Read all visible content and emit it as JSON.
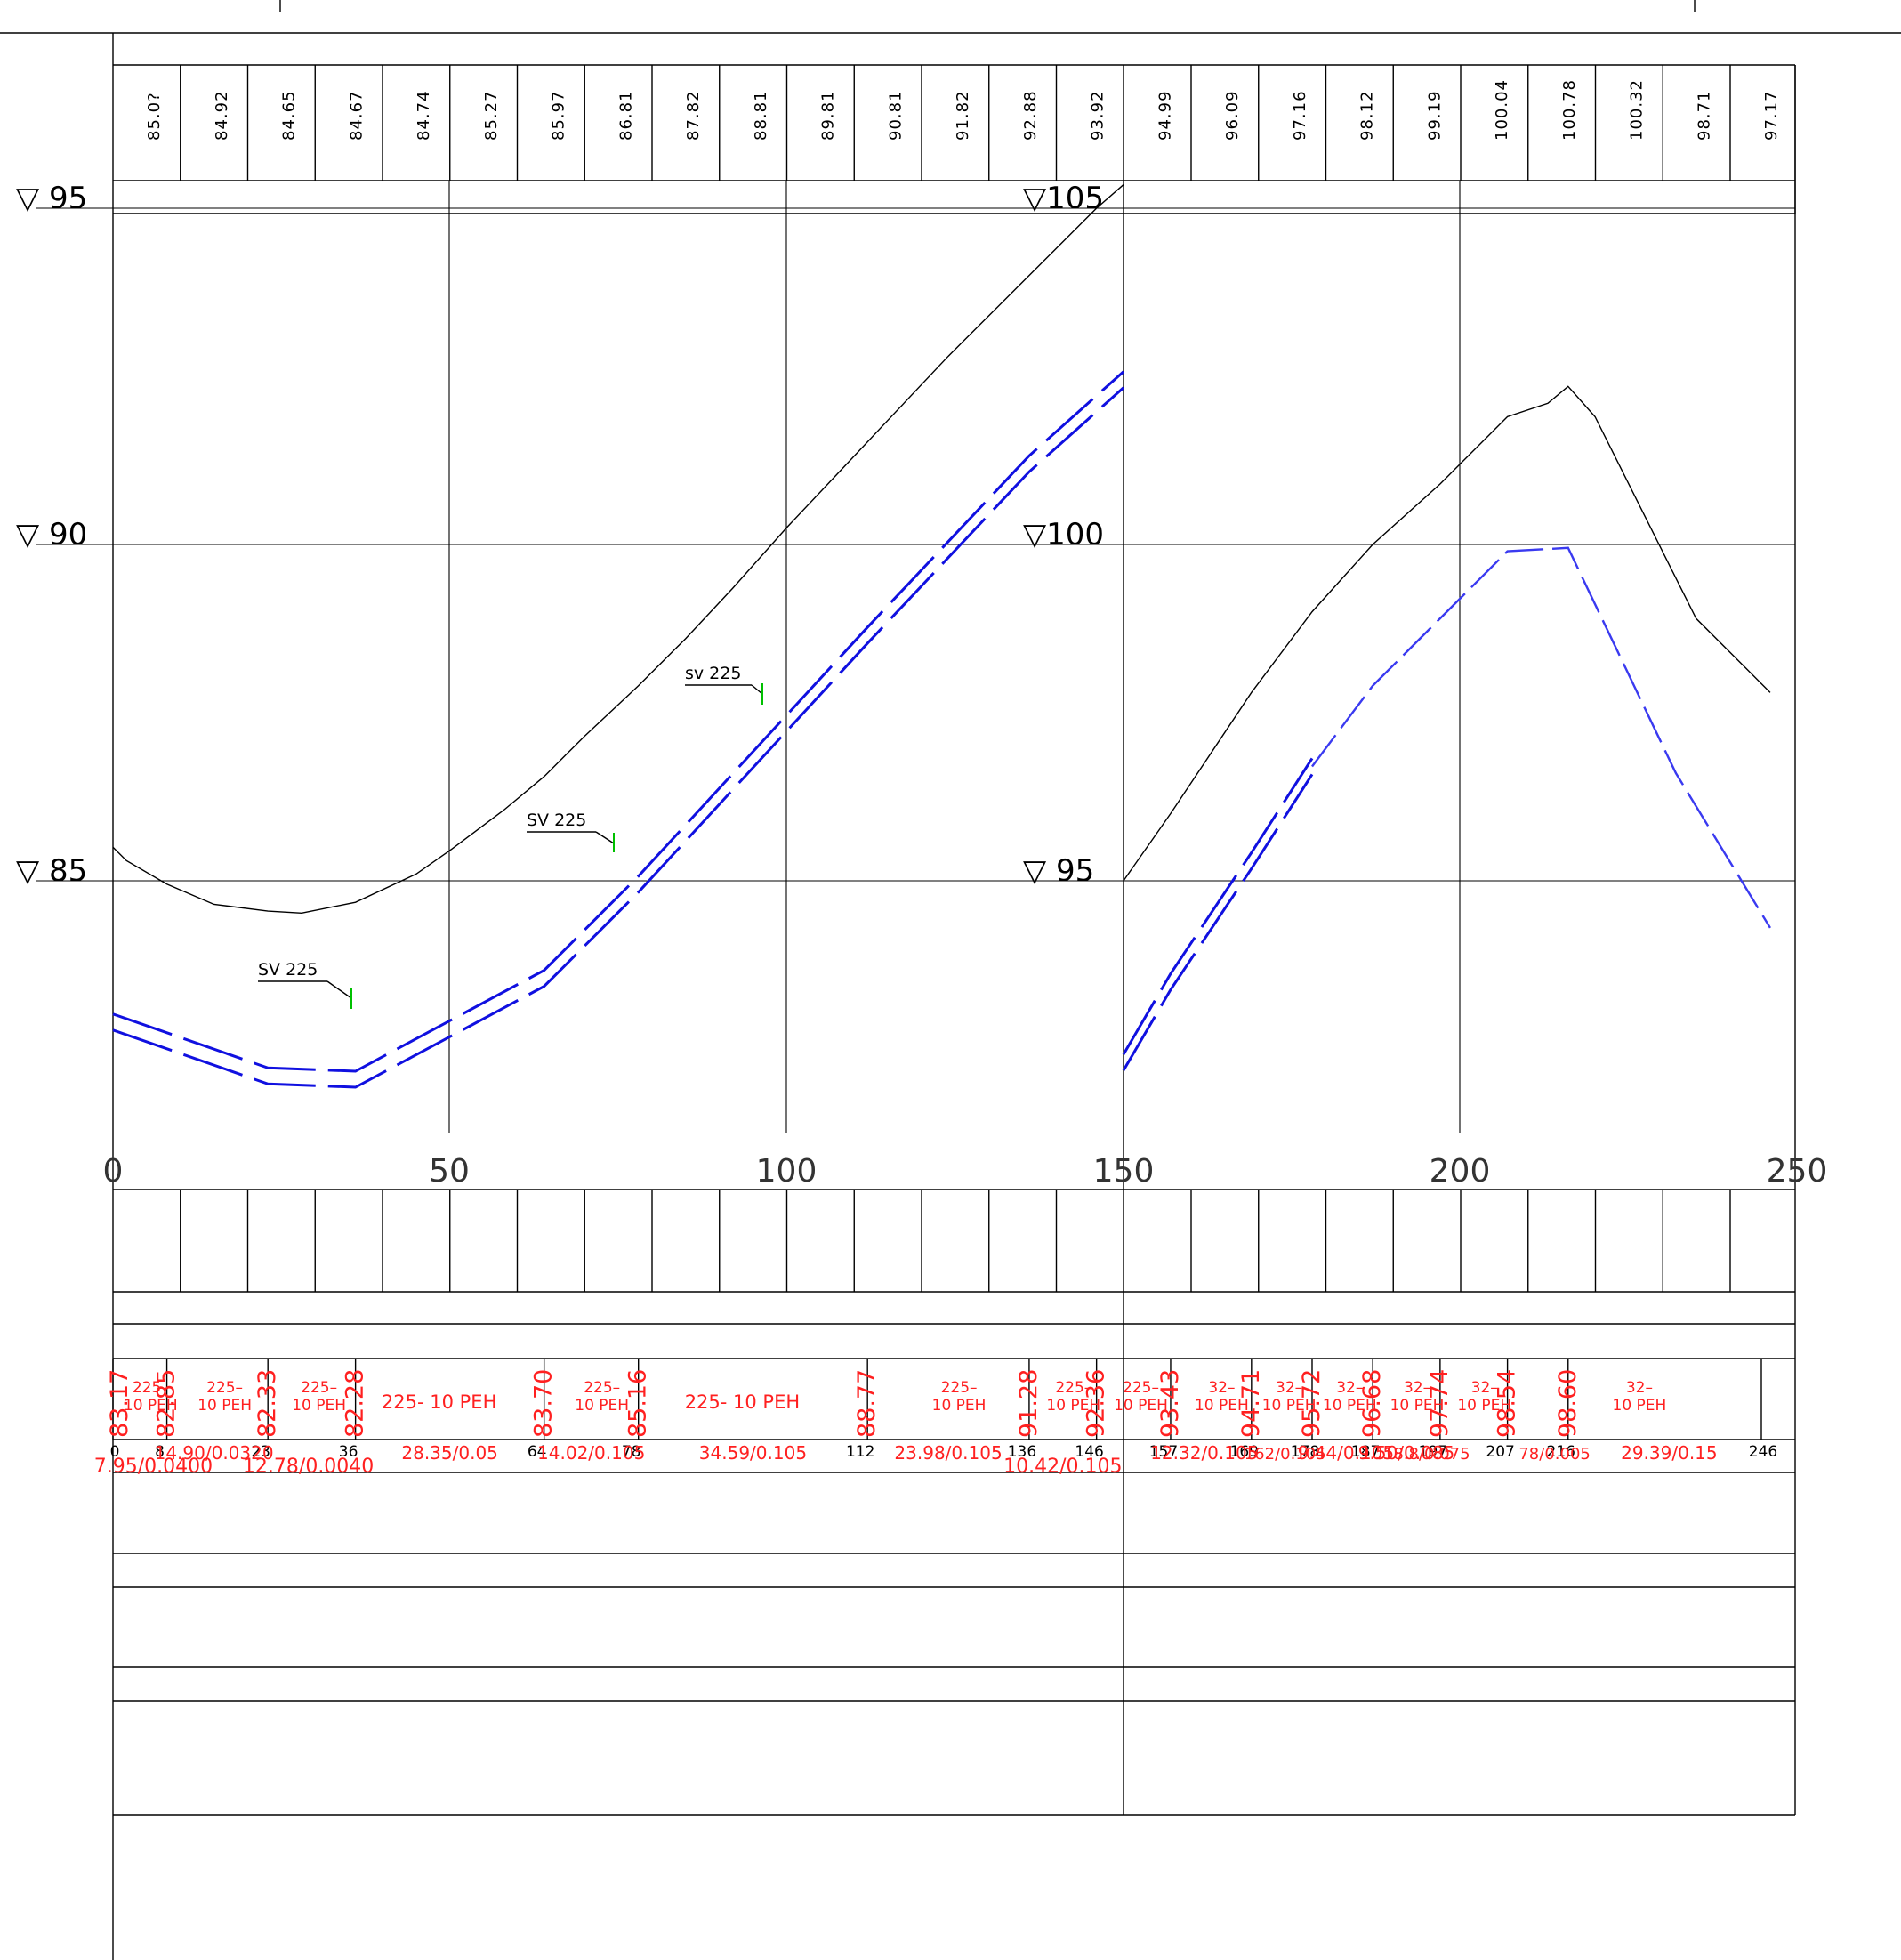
{
  "terrain_heights": [
    "85.0?",
    "84.92",
    "84.65",
    "84.67",
    "84.74",
    "85.27",
    "85.97",
    "86.81",
    "87.82",
    "88.81",
    "89.81",
    "90.81",
    "91.82",
    "92.88",
    "93.92",
    "94.99",
    "96.09",
    "97.16",
    "98.12",
    "99.19",
    "100.04",
    "100.78",
    "100.32",
    "98.71",
    "97.17"
  ],
  "levels_left": [
    "▽ 95",
    "▽ 90",
    "▽ 85"
  ],
  "levels_right": [
    "▽105",
    "▽100",
    "▽ 95"
  ],
  "x_ticks": [
    "0",
    "50",
    "100",
    "150",
    "200",
    "250"
  ],
  "valves": [
    "SV 225",
    "SV 225",
    "sv 225"
  ],
  "pipe_invert_heights": [
    "83.17",
    "82.85",
    "82.33",
    "82.28",
    "83.70",
    "85.16",
    "88.77",
    "91.28",
    "92.36",
    "93.43",
    "94.71",
    "95.72",
    "96.68",
    "97.74",
    "98.54",
    "98.60"
  ],
  "pipe_labels": [
    "225-10 PEH",
    "225- 10 PEH",
    "225- 10 PEH",
    "225- 10 PEH",
    "225- 10 PEH",
    "225- 10 PEH",
    "225- 10 PEH",
    "225- 10 PEH",
    "225- 10 PEH",
    "32- 10 PEH",
    "32- 10 PEH",
    "32- 10 PEH",
    "32- 10 PEH",
    "32- 10 PEH",
    "32- 10 PEH"
  ],
  "stations": [
    "0",
    "8",
    "23",
    "36",
    "64",
    "78",
    "112",
    "136",
    "146",
    "157",
    "169",
    "178",
    "187",
    "197",
    "207",
    "216",
    "246"
  ],
  "segment_len_slope_row1": [
    "14.90/0.0320",
    "28.35/0.05",
    "14.02/0.105",
    "34.59/0.105",
    "23.98/0.105",
    "12.32/0.105",
    "9.44/0.105",
    "9.50/0.085",
    "29.39/0.15"
  ],
  "segment_len_slope_row2": [
    "7.95/0.0400",
    "12.78/0.0040",
    "10.42/0.105"
  ],
  "segment_partial_labels": [
    "162/0.105",
    "18.8/0.075",
    "78/0.005"
  ],
  "chart_data": {
    "type": "line",
    "title": "",
    "xlabel": "",
    "ylabel": "",
    "x_ticks": [
      0,
      50,
      100,
      150,
      200,
      250
    ],
    "ylim_left": [
      80,
      96
    ],
    "ylim_right": [
      90,
      106
    ],
    "series": [
      {
        "x": [
          0,
          2,
          8,
          15,
          23,
          28,
          36,
          45,
          50,
          58,
          64,
          70,
          78,
          85,
          92,
          100,
          108,
          116,
          124,
          132,
          140,
          146,
          150
        ],
        "values": [
          85.5,
          85.3,
          84.95,
          84.65,
          84.55,
          84.52,
          84.68,
          85.1,
          85.45,
          86.05,
          86.55,
          87.15,
          87.9,
          88.6,
          89.35,
          90.25,
          91.1,
          91.95,
          92.8,
          93.6,
          94.4,
          95.0,
          95.35
        ]
      },
      {
        "x": [
          0,
          23,
          36,
          64,
          78,
          112,
          136,
          150
        ],
        "values": [
          82.9,
          82.1,
          82.05,
          83.55,
          84.95,
          88.65,
          91.2,
          92.45
        ]
      },
      {
        "x": [
          150,
          157,
          169,
          178,
          187,
          197,
          203,
          207,
          213,
          216,
          220,
          235,
          246
        ],
        "values": [
          95.0,
          96.0,
          97.8,
          99.0,
          100.0,
          100.9,
          101.5,
          101.9,
          102.1,
          102.35,
          101.9,
          98.9,
          97.8
        ]
      },
      {
        "x": [
          150,
          157,
          169,
          178,
          187,
          197,
          207,
          216,
          232,
          246
        ],
        "values": [
          92.3,
          93.5,
          95.3,
          96.7,
          97.9,
          98.9,
          99.9,
          99.95,
          96.6,
          94.3
        ]
      }
    ]
  }
}
